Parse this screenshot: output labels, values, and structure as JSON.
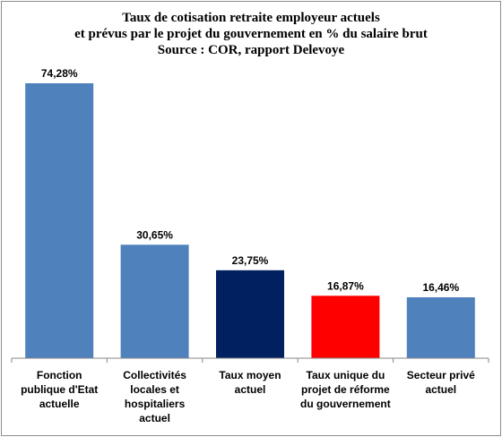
{
  "chart_data": {
    "type": "bar",
    "title": [
      "Taux de cotisation retraite employeur actuels",
      "et prévus par le projet du gouvernement en % du salaire brut",
      "Source : COR, rapport Delevoye"
    ],
    "categories": [
      "Fonction\npublique d'Etat\nactuelle",
      "Collectivités\nlocales et\nhospitaliers\nactuel",
      "Taux moyen\nactuel",
      "Taux unique du\nprojet de réforme\ndu gouvernement",
      "Secteur privé\nactuel"
    ],
    "values": [
      74.28,
      30.65,
      23.75,
      16.87,
      16.46
    ],
    "data_labels": [
      "74,28%",
      "30,65%",
      "23,75%",
      "16,87%",
      "16,46%"
    ],
    "colors": [
      "#4f81bd",
      "#4f81bd",
      "#002060",
      "#ff0000",
      "#4f81bd"
    ],
    "ylim": [
      0,
      80
    ],
    "grid": false,
    "legend": "none"
  }
}
